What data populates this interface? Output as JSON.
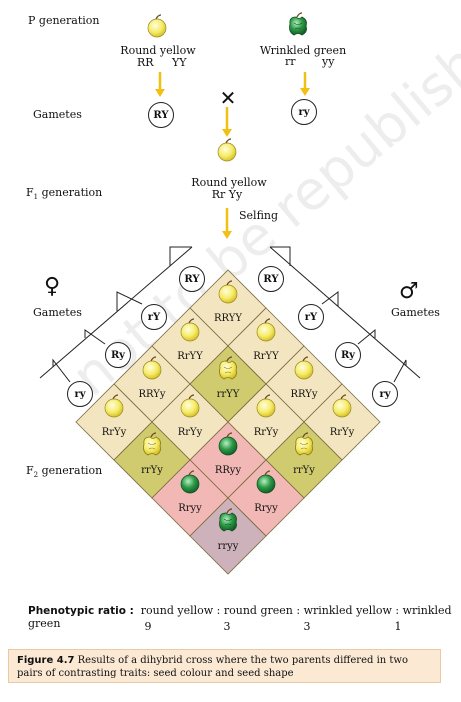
{
  "parents": {
    "p_generation_label": "P generation",
    "parent1_phenotype": "Round yellow",
    "parent1_genotype_a": "RR",
    "parent1_genotype_b": "YY",
    "parent2_phenotype": "Wrinkled green",
    "parent2_genotype_a": "rr",
    "parent2_genotype_b": "yy",
    "gametes_label": "Gametes",
    "gamete1": "RY",
    "gamete2": "ry",
    "cross_symbol": "✕",
    "f1_label_main": "F",
    "f1_label_sub": "1",
    "f1_label_rest": " generation",
    "f1_phenotype": "Round yellow",
    "f1_genotype": "Rr Yy",
    "selfing_label": "Selfing"
  },
  "cross": {
    "female_symbol": "♀",
    "male_symbol": "♂",
    "female_gametes_label": "Gametes",
    "male_gametes_label": "Gametes",
    "f2_label_main": "F",
    "f2_label_sub": "2",
    "f2_label_rest": " generation",
    "female_gametes": [
      "RY",
      "rY",
      "Ry",
      "ry"
    ],
    "male_gametes": [
      "RY",
      "rY",
      "Ry",
      "ry"
    ],
    "grid": [
      [
        "RRYY",
        "RrYY",
        "RRYy",
        "RrYy"
      ],
      [
        "RrYY",
        "rrYY",
        "RrYy",
        "rrYy"
      ],
      [
        "RRYy",
        "RrYy",
        "RRyy",
        "Rryy"
      ],
      [
        "RrYy",
        "rrYy",
        "Rryy",
        "rryy"
      ]
    ]
  },
  "ratio": {
    "label": "Phenotypic ratio :",
    "phenotypes": "round yellow : round green : wrinkled yellow : wrinkled green",
    "values": [
      "9",
      "3",
      "3",
      "1"
    ]
  },
  "caption": {
    "figure": "Figure  4.7",
    "text": " Results of a dihybrid cross where the two parents differed in two pairs of contrasting traits: seed colour and seed shape"
  },
  "watermark": "not to be republished",
  "colors": {
    "round_yellow_cell": "#f3e5bf",
    "wrinkled_yellow_cell": "#cfcb6e",
    "round_green_cell": "#f2b8b6",
    "wrinkled_green_cell": "#cdb2bb",
    "arrow": "#f2bf14",
    "seed_yellow": "#f6ec6a",
    "seed_green": "#2c9a45"
  }
}
